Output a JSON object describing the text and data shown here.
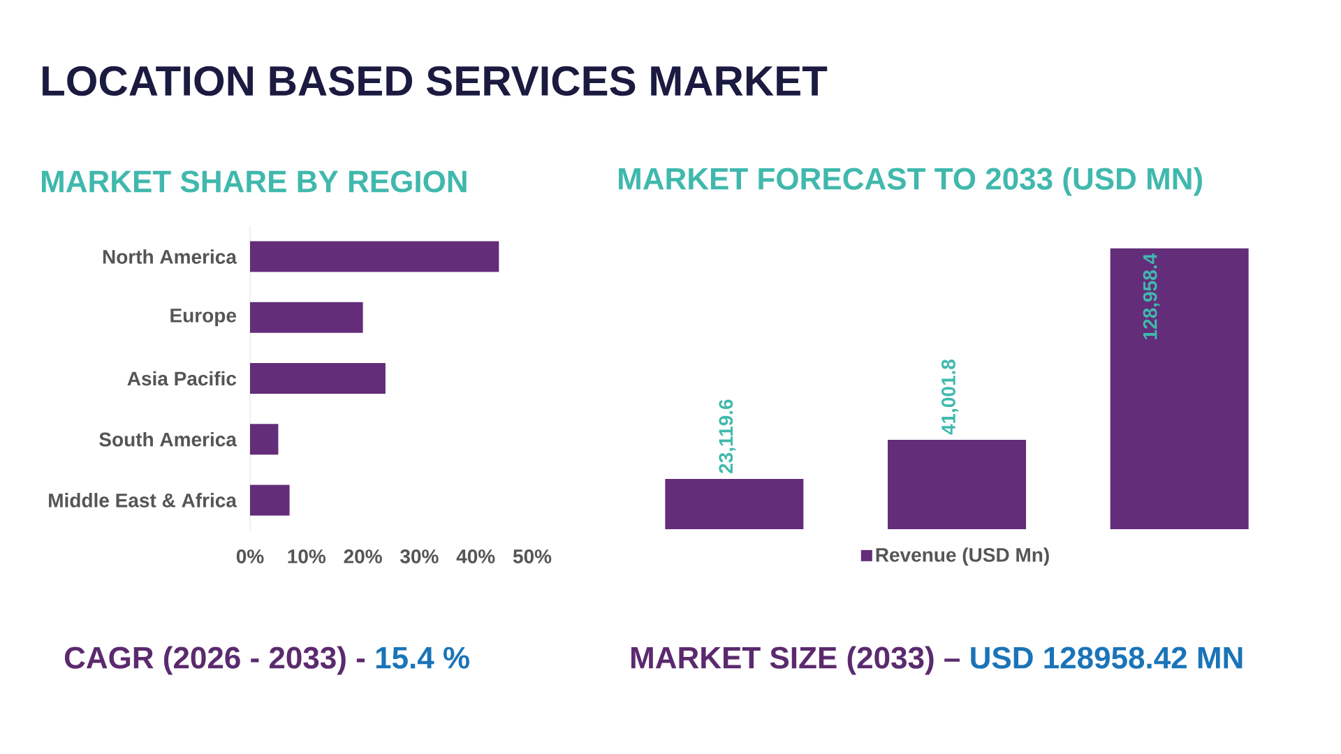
{
  "chart_data": [
    {
      "type": "bar",
      "orientation": "horizontal",
      "title": "LOCATION BASED SERVICES MARKET",
      "subtitle": "MARKET SHARE BY REGION",
      "categories": [
        "North America",
        "Europe",
        "Asia Pacific",
        "South America",
        "Middle East & Africa"
      ],
      "values": [
        44.1,
        20.0,
        24.0,
        5.0,
        7.0
      ],
      "color": "#632d79",
      "xlim": [
        0,
        50
      ],
      "xticks": [
        {
          "value": 0,
          "label": "0%"
        },
        {
          "value": 10,
          "label": "10%"
        },
        {
          "value": 20,
          "label": "20%"
        },
        {
          "value": 30,
          "label": "30%"
        },
        {
          "value": 40,
          "label": "40%"
        },
        {
          "value": 50,
          "label": "50%"
        }
      ],
      "annotations": [
        "CAGR (2026 - 2033) -",
        "15.4 %"
      ]
    },
    {
      "type": "bar",
      "title": "MARKET FORECAST TO 2033 (USD MN)",
      "categories": [
        null,
        null,
        null
      ],
      "series": [
        {
          "name": "Revenue (USD Mn)",
          "color": "#632d79",
          "values": [
            23119.6,
            41001.8,
            128958.4
          ],
          "value_labels": [
            "23,119.6",
            "41,001.8",
            "128,958.4"
          ]
        }
      ],
      "legend": "bottom",
      "annotations": [
        "MARKET SIZE (2033) –",
        "USD 128958.42 MN"
      ]
    }
  ]
}
